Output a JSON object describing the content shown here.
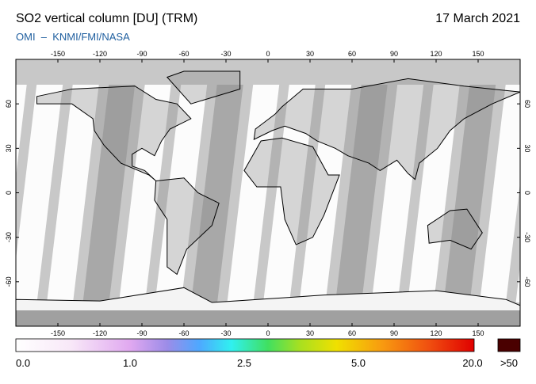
{
  "header": {
    "title": "SO2 vertical column [DU] (TRM)",
    "date": "17 March 2021",
    "credit": "OMI  –  KNMI/FMI/NASA"
  },
  "map": {
    "lon_range": [
      -180,
      180
    ],
    "lat_range": [
      -90,
      90
    ],
    "lon_ticks": [
      -150,
      -120,
      -90,
      -60,
      -30,
      0,
      30,
      60,
      90,
      120,
      150
    ],
    "lat_ticks": [
      60,
      30,
      0,
      -30,
      -60
    ]
  },
  "colorbar": {
    "labels": [
      "0.0",
      "1.0",
      "2.5",
      "5.0",
      "20.0"
    ],
    "overflow_label": ">50"
  }
}
